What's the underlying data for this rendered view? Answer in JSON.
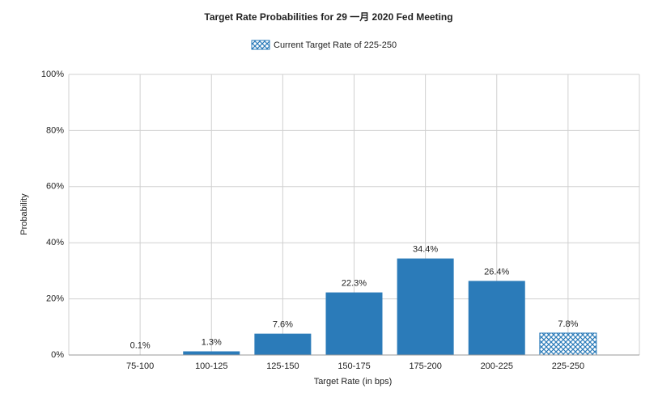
{
  "chart_data": {
    "type": "bar",
    "title": "Target Rate Probabilities for 29 一月 2020 Fed Meeting",
    "legend": "Current Target Rate of 225-250",
    "x_label": "Target Rate (in bps)",
    "y_label": "Probability",
    "categories": [
      "75-100",
      "100-125",
      "125-150",
      "150-175",
      "175-200",
      "200-225",
      "225-250"
    ],
    "values": [
      0.1,
      1.3,
      7.6,
      22.3,
      34.4,
      26.4,
      7.8
    ],
    "value_labels": [
      "0.1%",
      "1.3%",
      "7.6%",
      "22.3%",
      "34.4%",
      "26.4%",
      "7.8%"
    ],
    "hatched": [
      false,
      false,
      false,
      false,
      false,
      false,
      true
    ],
    "color": "#2b7bb9",
    "ylim": [
      0,
      100
    ],
    "yticks": [
      {
        "value": 0,
        "label": "0%"
      },
      {
        "value": 20,
        "label": "20%"
      },
      {
        "value": 40,
        "label": "40%"
      },
      {
        "value": 60,
        "label": "60%"
      },
      {
        "value": 80,
        "label": "80%"
      },
      {
        "value": 100,
        "label": "100%"
      }
    ],
    "grid": true
  }
}
